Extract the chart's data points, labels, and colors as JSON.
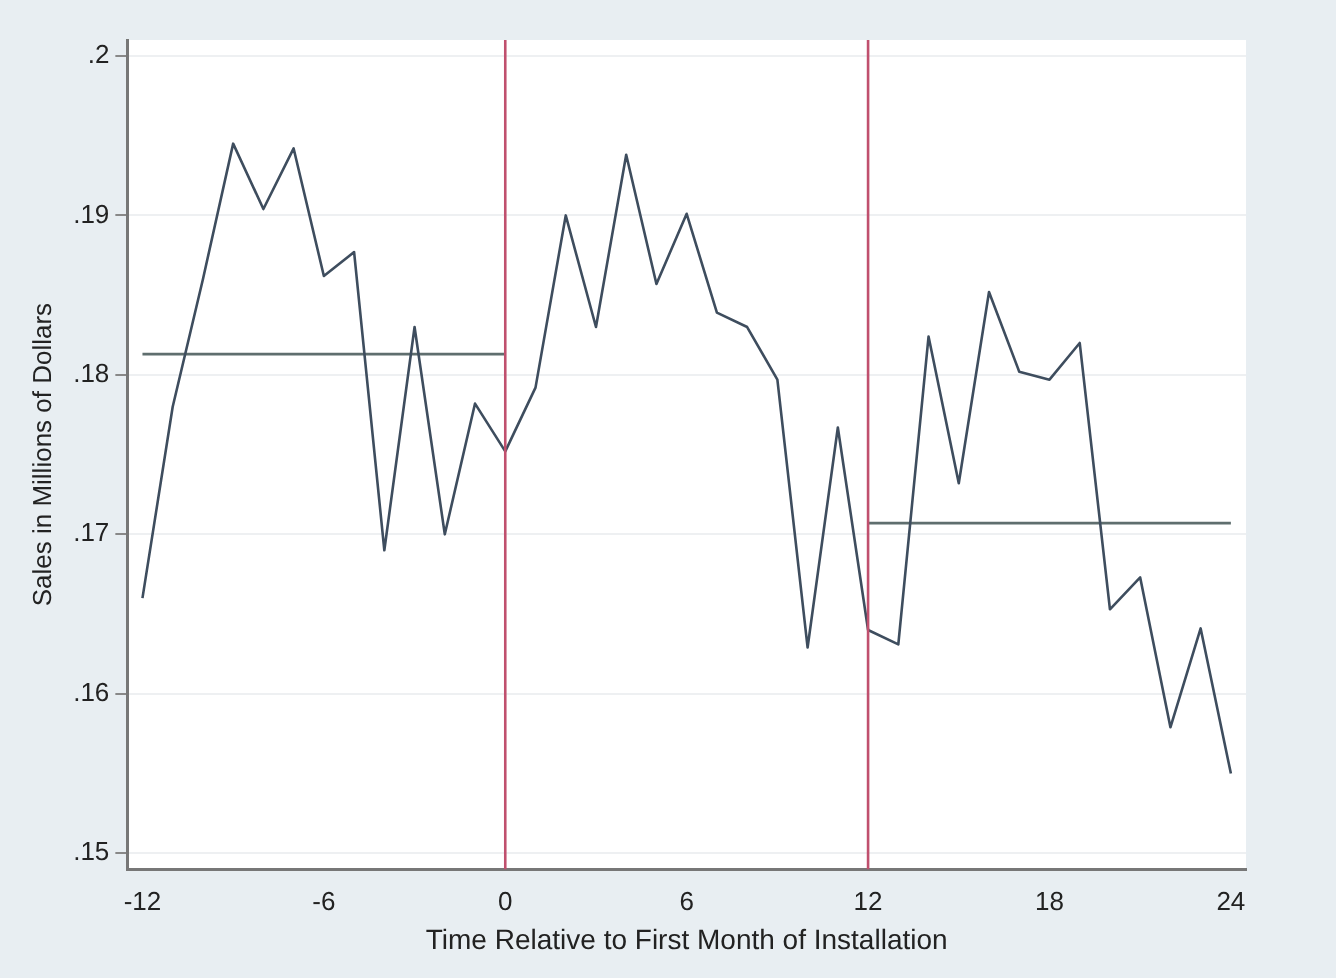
{
  "chart_data": {
    "type": "line",
    "xlabel": "Time Relative to First Month of Installation",
    "ylabel": "Sales in Millions of Dollars",
    "x": [
      -12,
      -11,
      -10,
      -9,
      -8,
      -7,
      -6,
      -5,
      -4,
      -3,
      -2,
      -1,
      0,
      1,
      2,
      3,
      4,
      5,
      6,
      7,
      8,
      9,
      10,
      11,
      12,
      13,
      14,
      15,
      16,
      17,
      18,
      19,
      20,
      21,
      22,
      23,
      24
    ],
    "series": [
      {
        "color": "#3e4d5e",
        "values": [
          0.166,
          0.178,
          0.186,
          0.1945,
          0.1904,
          0.1942,
          0.1862,
          0.1877,
          0.169,
          0.183,
          0.17,
          0.1782,
          0.1752,
          0.1792,
          0.19,
          0.183,
          0.1938,
          0.1857,
          0.1901,
          0.1839,
          0.183,
          0.1797,
          0.1629,
          0.1767,
          0.164,
          0.1631,
          0.1824,
          0.1732,
          0.1852,
          0.1802,
          0.1797,
          0.182,
          0.1653,
          0.1673,
          0.1579,
          0.1641,
          0.155
        ]
      },
      {
        "color": "#5f6e6e",
        "x": [
          -12,
          0
        ],
        "values": [
          0.1813,
          0.1813
        ]
      },
      {
        "color": "#5f6e6e",
        "x": [
          12,
          24
        ],
        "values": [
          0.1707,
          0.1707
        ]
      }
    ],
    "ref_lines": [
      {
        "axis": "x",
        "value": 0,
        "color": "#c0506e"
      },
      {
        "axis": "x",
        "value": 12,
        "color": "#c0506e"
      }
    ],
    "xlim": [
      -12.5,
      24.5
    ],
    "xticks": [
      -12,
      -6,
      0,
      6,
      12,
      18,
      24
    ],
    "ylim": [
      0.149,
      0.201
    ],
    "yticks": [
      {
        "value": 0.15,
        "label": ".15"
      },
      {
        "value": 0.16,
        "label": ".16"
      },
      {
        "value": 0.17,
        "label": ".17"
      },
      {
        "value": 0.18,
        "label": ".18"
      },
      {
        "value": 0.19,
        "label": ".19"
      },
      {
        "value": 0.2,
        "label": ".2"
      }
    ],
    "grid": "y",
    "legend": false,
    "marker": "none",
    "line_style": "solid"
  }
}
